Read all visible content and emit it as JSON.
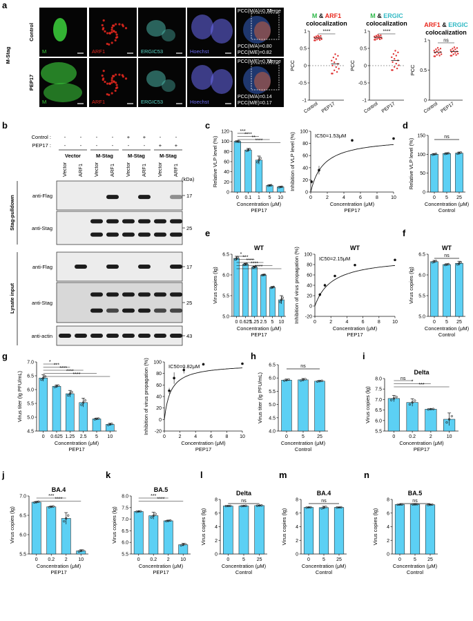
{
  "panel_a": {
    "letter": "a",
    "group_label": "M-Stag",
    "row_labels": [
      "Control",
      "PEP17"
    ],
    "channel_labels": [
      "M",
      "ARF1",
      "ERGIC53",
      "Hoechst",
      "Merge"
    ],
    "row_pcc": [
      {
        "top": "PCC(M/A)=0.77",
        "b1": "PCC(M/A)=0.80",
        "b2": "PCC(M/E)=0.82"
      },
      {
        "top": "PCC(M/E)=0.72",
        "b1": "PCC(M/A)=0.14",
        "b2": "PCC(M/E)=0.17"
      }
    ],
    "colors": {
      "M": "#3cd23c",
      "ARF1": "#e8281e",
      "ERGIC53": "#58d7c8",
      "Hoechst": "#6a6af0"
    }
  },
  "panel_b": {
    "letter": "b",
    "cond_labels": [
      "Control :",
      "PEP17 :"
    ],
    "control_signs": [
      "-",
      "-",
      "-",
      "-",
      "+",
      "+",
      "-",
      "-"
    ],
    "pep17_signs": [
      "-",
      "-",
      "-",
      "-",
      "-",
      "-",
      "+",
      "+"
    ],
    "group_headers": [
      "Vector",
      "M-Stag",
      "M-Stag",
      "M-Stag"
    ],
    "lane_labels": [
      "Vector",
      "ARF1",
      "Vector",
      "ARF1",
      "Vector",
      "ARF1",
      "Vector",
      "ARF1"
    ],
    "kda": "(kDa)",
    "sections": [
      "Stag-pulldown",
      "Lysate input"
    ],
    "blots": [
      {
        "label": "anti-Flag",
        "marker": "17"
      },
      {
        "label": "anti-Stag",
        "marker": "25"
      },
      {
        "label": "anti-Flag",
        "marker": "17"
      },
      {
        "label": "anti-Stag",
        "marker": "25"
      },
      {
        "label": "anti-actin",
        "marker": "43"
      }
    ]
  },
  "chart_data": [
    {
      "id": "a1",
      "type": "scatter",
      "title_parts": [
        "M",
        " & ",
        "ARF1"
      ],
      "title2": "colocalization",
      "ylabel": "PCC",
      "categories": [
        "Control",
        "PEP17"
      ],
      "values": [
        0.8,
        0.05
      ],
      "ylim": [
        -1.0,
        1.0
      ],
      "yticks": [
        -1.0,
        -0.5,
        0.0,
        0.5,
        1.0
      ],
      "sig": [
        "****"
      ],
      "dashed_zero": true
    },
    {
      "id": "a2",
      "type": "scatter",
      "title_parts": [
        "M",
        " & ",
        "ERGIC"
      ],
      "title2": "colocalization",
      "ylabel": "PCC",
      "categories": [
        "Control",
        "PEP17"
      ],
      "values": [
        0.82,
        0.15
      ],
      "ylim": [
        -1.0,
        1.0
      ],
      "yticks": [
        -1.0,
        -0.5,
        0.0,
        0.5,
        1.0
      ],
      "sig": [
        "****"
      ],
      "dashed_zero": true
    },
    {
      "id": "a3",
      "type": "scatter",
      "title_parts": [
        "ARF1",
        " & ",
        "ERGIC"
      ],
      "title2": "colocalization",
      "ylabel": "PCC",
      "categories": [
        "Control",
        "PEP17"
      ],
      "values": [
        0.8,
        0.81
      ],
      "ylim": [
        0.0,
        1.0
      ],
      "yticks": [
        0.0,
        0.5,
        1.0
      ],
      "sig": [
        "ns"
      ],
      "dashed_zero": false
    },
    {
      "id": "c",
      "type": "bar",
      "title": "",
      "ylabel": "Relative VLP level (%)",
      "xlabel": "Concentration (μM)",
      "xsub": "PEP17",
      "categories": [
        "0",
        "0.1",
        "1",
        "5",
        "10"
      ],
      "values": [
        100,
        83,
        63,
        13,
        10
      ],
      "errors": [
        1,
        3,
        8,
        1,
        1
      ],
      "ylim": [
        0,
        120
      ],
      "yticks": [
        0,
        20,
        40,
        60,
        80,
        100,
        120
      ],
      "sig": [
        "***",
        "****",
        "**",
        "****"
      ]
    },
    {
      "id": "c2",
      "type": "line",
      "title": "",
      "annotation": "IC50=1.53μM",
      "ylabel": "Inhibition of VLP level (%)",
      "xlabel": "Concentration (μM)",
      "xsub": "PEP17",
      "x": [
        0.1,
        1,
        5,
        10
      ],
      "y": [
        17,
        36,
        85,
        88
      ],
      "errors": [
        3,
        7,
        1,
        1
      ],
      "ylim": [
        0,
        100
      ],
      "yticks": [
        0,
        20,
        40,
        60,
        80,
        100
      ],
      "xlim": [
        0,
        10
      ],
      "xticks": [
        0,
        2,
        4,
        6,
        8,
        10
      ],
      "ic50": 1.53,
      "top": 90
    },
    {
      "id": "d",
      "type": "bar",
      "title": "",
      "ylabel": "Relative VLP level (%)",
      "xlabel": "Concentration (μM)",
      "xsub": "Control",
      "categories": [
        "0",
        "5",
        "25"
      ],
      "values": [
        100,
        102,
        103
      ],
      "errors": [
        2,
        2,
        3
      ],
      "ylim": [
        0,
        150
      ],
      "yticks": [
        0,
        50,
        100,
        150
      ],
      "sig": [
        "ns"
      ]
    },
    {
      "id": "e",
      "type": "bar",
      "title": "WT",
      "ylabel": "Virus copies (lg)",
      "xlabel": "Concentration (μM)",
      "xsub": "PEP17",
      "categories": [
        "0",
        "0.625",
        "1.25",
        "2.5",
        "5",
        "10"
      ],
      "values": [
        6.4,
        6.26,
        6.19,
        6.0,
        5.7,
        5.4
      ],
      "errors": [
        0.05,
        0.02,
        0.02,
        0.01,
        0.02,
        0.1
      ],
      "ylim": [
        5.0,
        6.5
      ],
      "yticks": [
        5.0,
        5.5,
        6.0,
        6.5
      ],
      "ytickfmt": 1,
      "sig": [
        "*",
        "***",
        "****",
        "****",
        "****"
      ]
    },
    {
      "id": "e2",
      "type": "line",
      "title": "WT",
      "annotation": "IC50=2.15μM",
      "ylabel": "Inhibition of virus propagation (%)",
      "xlabel": "Concentration (μM)",
      "xsub": "PEP17",
      "x": [
        0.625,
        1.25,
        2.5,
        5,
        10
      ],
      "y": [
        22,
        40,
        58,
        79,
        89
      ],
      "errors": [
        3,
        3,
        2,
        1,
        2
      ],
      "ylim": [
        -20,
        100
      ],
      "yticks": [
        -20,
        0,
        20,
        40,
        60,
        80,
        100
      ],
      "xlim": [
        0,
        10
      ],
      "xticks": [
        0,
        2,
        4,
        6,
        8,
        10
      ],
      "ic50": 2.15,
      "top": 95
    },
    {
      "id": "f",
      "type": "bar",
      "title": "WT",
      "ylabel": "Virus copies (lg)",
      "xlabel": "Concentration (μM)",
      "xsub": "Control",
      "categories": [
        "0",
        "5",
        "25"
      ],
      "values": [
        6.32,
        6.25,
        6.28
      ],
      "errors": [
        0.03,
        0.02,
        0.05
      ],
      "ylim": [
        5.0,
        6.5
      ],
      "yticks": [
        5.0,
        5.5,
        6.0,
        6.5
      ],
      "ytickfmt": 1,
      "sig": [
        "ns"
      ]
    },
    {
      "id": "g",
      "type": "bar",
      "title": "",
      "ylabel": "Virus titer (lg PFU/mL)",
      "xlabel": "Concentration (μM)",
      "xsub": "PEP17",
      "categories": [
        "0",
        "0.625",
        "1.25",
        "2.5",
        "5",
        "10"
      ],
      "values": [
        6.42,
        6.12,
        5.85,
        5.53,
        4.94,
        4.74
      ],
      "errors": [
        0.12,
        0.05,
        0.12,
        0.16,
        0.03,
        0.04
      ],
      "ylim": [
        4.5,
        7.0
      ],
      "yticks": [
        4.5,
        5.0,
        5.5,
        6.0,
        6.5,
        7.0
      ],
      "ytickfmt": 1,
      "sig": [
        "*",
        "***",
        "****",
        "****",
        "****"
      ]
    },
    {
      "id": "g2",
      "type": "line",
      "title": "",
      "annotation": "IC50=0.82μM",
      "ylabel": "Inhibition of virus propagation (%)",
      "xlabel": "Concentration (μM)",
      "xsub": "PEP17",
      "x": [
        0.625,
        1.25,
        2.5,
        5,
        10
      ],
      "y": [
        50,
        72,
        86,
        96,
        97
      ],
      "errors": [
        5,
        10,
        6,
        1,
        1
      ],
      "ylim": [
        -20,
        100
      ],
      "yticks": [
        -20,
        0,
        20,
        40,
        60,
        80,
        100
      ],
      "xlim": [
        0,
        10
      ],
      "xticks": [
        0,
        2,
        4,
        6,
        8,
        10
      ],
      "ic50": 0.82,
      "top": 97
    },
    {
      "id": "h",
      "type": "bar",
      "title": "",
      "ylabel": "Virus titer (lg PFU/mL)",
      "xlabel": "Concentration (μM)",
      "xsub": "Control",
      "categories": [
        "0",
        "5",
        "25"
      ],
      "values": [
        5.92,
        5.93,
        5.88
      ],
      "errors": [
        0.04,
        0.05,
        0.03
      ],
      "ylim": [
        4.0,
        6.5
      ],
      "yticks": [
        4.0,
        4.5,
        5.0,
        5.5,
        6.0,
        6.5
      ],
      "ytickfmt": 1,
      "sig": [
        "ns"
      ]
    },
    {
      "id": "i",
      "type": "bar",
      "title": "Delta",
      "ylabel": "Virus copies (lg)",
      "xlabel": "Concentration (μM)",
      "xsub": "PEP17",
      "categories": [
        "0",
        "0.2",
        "2",
        "10"
      ],
      "values": [
        7.05,
        6.86,
        6.54,
        6.06
      ],
      "errors": [
        0.15,
        0.18,
        0.02,
        0.3
      ],
      "ylim": [
        5.5,
        8.0
      ],
      "yticks": [
        5.5,
        6.0,
        6.5,
        7.0,
        7.5,
        8.0
      ],
      "ytickfmt": 1,
      "sig": [
        "ns",
        "*",
        "***"
      ]
    },
    {
      "id": "j",
      "type": "bar",
      "title": "BA.4",
      "ylabel": "Virus copies (lg)",
      "xlabel": "Concentration (μM)",
      "xsub": "PEP17",
      "categories": [
        "0",
        "0.2",
        "2",
        "10"
      ],
      "values": [
        6.84,
        6.72,
        6.42,
        5.58
      ],
      "errors": [
        0.02,
        0.02,
        0.15,
        0.03
      ],
      "ylim": [
        5.5,
        7.0
      ],
      "yticks": [
        5.5,
        6.0,
        6.5,
        7.0
      ],
      "ytickfmt": 1,
      "sig": [
        "***",
        "****"
      ]
    },
    {
      "id": "k",
      "type": "bar",
      "title": "BA.5",
      "ylabel": "Virus copies (lg)",
      "xlabel": "Concentration (μM)",
      "xsub": "PEP17",
      "categories": [
        "0",
        "0.2",
        "2",
        "10"
      ],
      "values": [
        7.33,
        7.15,
        6.93,
        5.9
      ],
      "errors": [
        0.02,
        0.15,
        0.03,
        0.06
      ],
      "ylim": [
        5.5,
        8.0
      ],
      "yticks": [
        5.5,
        6.0,
        6.5,
        7.0,
        7.5,
        8.0
      ],
      "ytickfmt": 1,
      "sig": [
        "***",
        "****"
      ]
    },
    {
      "id": "l",
      "type": "bar",
      "title": "Delta",
      "ylabel": "Virus copies (lg)",
      "xlabel": "Concentration (μM)",
      "xsub": "Control",
      "categories": [
        "0",
        "5",
        "25"
      ],
      "values": [
        7.04,
        7.04,
        7.1
      ],
      "errors": [
        0.03,
        0.04,
        0.05
      ],
      "ylim": [
        0,
        8
      ],
      "yticks": [
        0,
        2,
        4,
        6,
        8
      ],
      "sig": [
        "ns"
      ]
    },
    {
      "id": "m",
      "type": "bar",
      "title": "BA.4",
      "ylabel": "Virus copies (lg)",
      "xlabel": "Concentration (μM)",
      "xsub": "Control",
      "categories": [
        "0",
        "5",
        "25"
      ],
      "values": [
        6.83,
        6.8,
        6.83
      ],
      "errors": [
        0.05,
        0.2,
        0.03
      ],
      "ylim": [
        0,
        8
      ],
      "yticks": [
        0,
        2,
        4,
        6,
        8
      ],
      "sig": [
        "ns"
      ]
    },
    {
      "id": "n",
      "type": "bar",
      "title": "BA.5",
      "ylabel": "Virus copies (lg)",
      "xlabel": "Concentration (μM)",
      "xsub": "Control",
      "categories": [
        "0",
        "5",
        "25"
      ],
      "values": [
        7.25,
        7.28,
        7.22
      ],
      "errors": [
        0.03,
        0.03,
        0.05
      ],
      "ylim": [
        0,
        8
      ],
      "yticks": [
        0,
        2,
        4,
        6,
        8
      ],
      "sig": [
        "ns"
      ]
    }
  ],
  "panel_letters": {
    "c": "c",
    "d": "d",
    "e": "e",
    "f": "f",
    "g": "g",
    "h": "h",
    "i": "i",
    "j": "j",
    "k": "k",
    "l": "l",
    "m": "m",
    "n": "n"
  },
  "colors": {
    "bar": "#5cd0f4",
    "marker": "#222222",
    "pcc_dot": "#e03030",
    "title_red": "#e8281e",
    "title_green": "#2fb84a",
    "title_cyan": "#31b9c4"
  }
}
